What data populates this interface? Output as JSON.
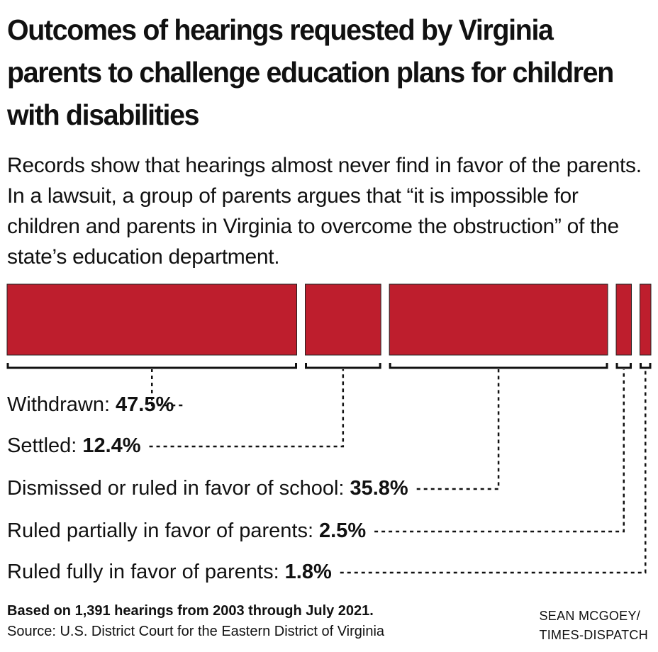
{
  "chart_data": {
    "type": "stacked-bar",
    "title": "Outcomes of hearings requested by Virginia parents to challenge education plans for children with disabilities",
    "subtitle": "Records show that hearings almost never find in favor of the parents. In a lawsuit, a group of parents argues that “it is impossible for children and parents in Virginia to overcome the obstruction” of the state’s education department.",
    "categories": [
      "Withdrawn:",
      "Settled:",
      "Dismissed or ruled in favor of school:",
      "Ruled partially in favor of parents:",
      "Ruled fully in favor of parents:"
    ],
    "values": [
      47.5,
      12.4,
      35.8,
      2.5,
      1.8
    ],
    "value_labels": [
      "47.5%",
      "12.4%",
      "35.8%",
      "2.5%",
      "1.8%"
    ],
    "color": "#be1e2d",
    "note": "Based on 1,391 hearings from 2003 through July 2021.",
    "source": "Source: U.S. District Court for the Eastern District of Virginia",
    "credit": [
      "SEAN MCGOEY/",
      "TIMES-DISPATCH"
    ]
  }
}
